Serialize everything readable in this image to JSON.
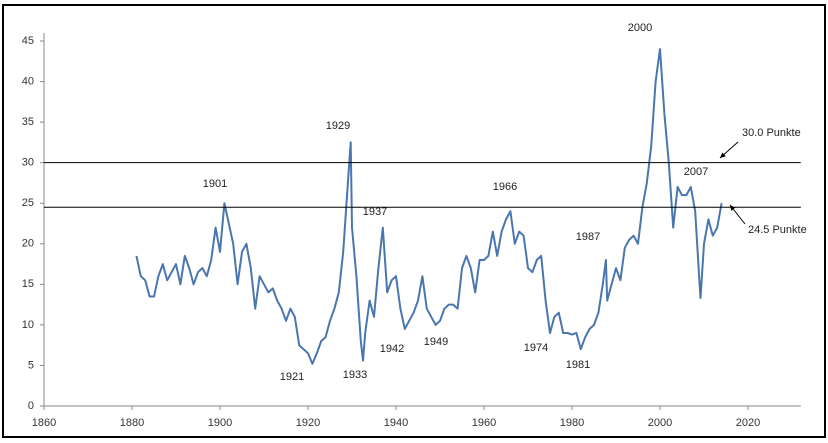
{
  "chart_data": {
    "type": "line",
    "x": [
      1881,
      1882,
      1883,
      1884,
      1885,
      1886,
      1887,
      1888,
      1889,
      1890,
      1891,
      1892,
      1893,
      1894,
      1895,
      1896,
      1897,
      1898,
      1899,
      1900,
      1901,
      1902,
      1903,
      1904,
      1905,
      1906,
      1907,
      1908,
      1909,
      1910,
      1911,
      1912,
      1913,
      1914,
      1915,
      1916,
      1917,
      1918,
      1919,
      1920,
      1921,
      1922,
      1923,
      1924,
      1925,
      1926,
      1927,
      1928,
      1929,
      1929.7,
      1930,
      1931,
      1932,
      1932.5,
      1933,
      1934,
      1935,
      1936,
      1937,
      1938,
      1939,
      1940,
      1941,
      1942,
      1943,
      1944,
      1945,
      1946,
      1947,
      1948,
      1949,
      1950,
      1951,
      1952,
      1953,
      1954,
      1955,
      1956,
      1957,
      1958,
      1959,
      1960,
      1961,
      1962,
      1963,
      1964,
      1965,
      1966,
      1967,
      1968,
      1969,
      1970,
      1971,
      1972,
      1973,
      1974,
      1975,
      1976,
      1977,
      1978,
      1979,
      1980,
      1981,
      1982,
      1983,
      1984,
      1985,
      1986,
      1987,
      1987.7,
      1988,
      1989,
      1990,
      1991,
      1992,
      1993,
      1994,
      1995,
      1996,
      1997,
      1998,
      1999,
      2000,
      2001,
      2002,
      2003,
      2004,
      2005,
      2006,
      2007,
      2008,
      2009,
      2009.2,
      2010,
      2011,
      2012,
      2013,
      2014
    ],
    "series": [
      {
        "color": "#4a76b0",
        "values": [
          18.5,
          16,
          15.5,
          13.5,
          13.5,
          16,
          17.5,
          15.5,
          16.5,
          17.5,
          15,
          18.5,
          17,
          15,
          16.5,
          17,
          16,
          18,
          22,
          19,
          25,
          22.5,
          20,
          15,
          19,
          20,
          17,
          12,
          16,
          15,
          14,
          14.5,
          13,
          12,
          10.5,
          12,
          11,
          7.5,
          7,
          6.5,
          5.2,
          6.5,
          8,
          8.5,
          10.5,
          12,
          14,
          19,
          27,
          32.5,
          22,
          16,
          8,
          5.6,
          9,
          13,
          11,
          17,
          22,
          14,
          15.5,
          16,
          12,
          9.5,
          10.5,
          11.5,
          13,
          16,
          12,
          11,
          10,
          10.5,
          12,
          12.5,
          12.5,
          12,
          17,
          18.5,
          17,
          14,
          18,
          18,
          18.5,
          21.5,
          18.5,
          21.5,
          23,
          24,
          20,
          21.5,
          21,
          17,
          16.5,
          18,
          18.5,
          13,
          9,
          11,
          11.5,
          9,
          9,
          8.8,
          9,
          7,
          8.5,
          9.5,
          10,
          11.5,
          15,
          18,
          13,
          15,
          17,
          15.5,
          19.5,
          20.5,
          21,
          20,
          24.5,
          27.5,
          32,
          40,
          44,
          36,
          30,
          22,
          27,
          26,
          26,
          27,
          24,
          15,
          13.3,
          20,
          23,
          21,
          22,
          25
        ]
      }
    ],
    "xlim": [
      1860,
      2032
    ],
    "xticks": [
      1860,
      1880,
      1900,
      1920,
      1940,
      1960,
      1980,
      2000,
      2020
    ],
    "ylim": [
      0,
      46
    ],
    "yticks": [
      0,
      5,
      10,
      15,
      20,
      25,
      30,
      35,
      40,
      45
    ],
    "reference_lines": [
      {
        "value": 30,
        "label": "30.0 Punkte"
      },
      {
        "value": 24.5,
        "label": "24.5 Punkte"
      }
    ],
    "annotations": [
      "1901",
      "1929",
      "1937",
      "1966",
      "1987",
      "2000",
      "2007",
      "1921",
      "1933",
      "1942",
      "1949",
      "1974",
      "1981"
    ]
  }
}
